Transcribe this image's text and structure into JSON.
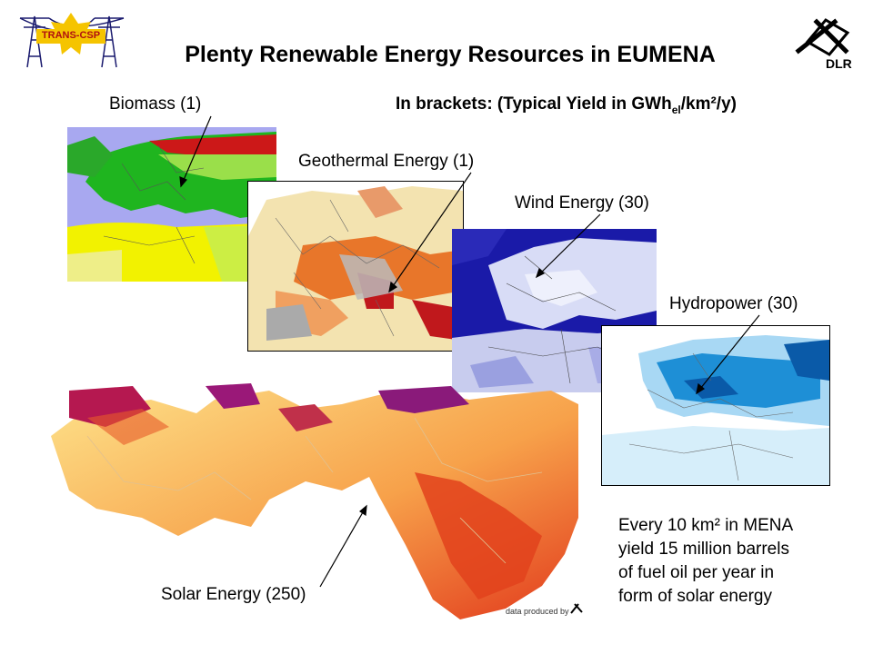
{
  "logo_left": {
    "text": "TRANS-CSP",
    "color": "#f5c400"
  },
  "logo_right": {
    "text": "DLR"
  },
  "title": "Plenty Renewable Energy Resources in EUMENA",
  "brackets": {
    "prefix": "In brackets: (Typical Yield in GWh",
    "sub": "el",
    "suffix": "/km²/y)"
  },
  "labels": {
    "biomass": "Biomass (1)",
    "geothermal": "Geothermal Energy (1)",
    "wind": "Wind Energy (30)",
    "hydro": "Hydropower (30)",
    "solar": "Solar Energy (250)"
  },
  "note": [
    "Every 10 km² in MENA",
    "yield 15 million barrels",
    "of fuel oil per year in",
    "form of solar energy"
  ],
  "credit": "data produced by",
  "colors": {
    "biomass_green": "#1fb51f",
    "wind_blue": "#1a1aa8",
    "hydro_blue": "#1e8fd6",
    "solar_red": "#e23a1c",
    "geo_orange": "#e8762a"
  }
}
